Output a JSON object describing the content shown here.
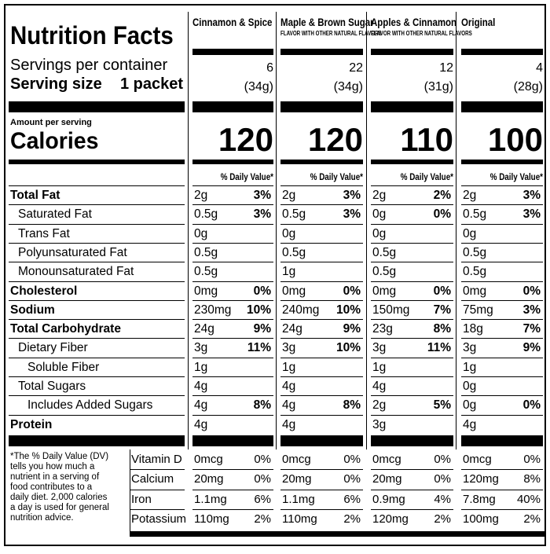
{
  "title": "Nutrition Facts",
  "servings_label": "Servings per container",
  "serving_size_label": "Serving size",
  "serving_size_value": "1 packet",
  "amount_per_serving": "Amount per serving",
  "calories_label": "Calories",
  "dv_header": "% Daily Value*",
  "columns": [
    {
      "name": "Cinnamon & Spice",
      "sub": "",
      "servings": "6",
      "size": "(34g)",
      "calories": "120"
    },
    {
      "name": "Maple & Brown Sugar",
      "sub": "FLAVOR WITH OTHER NATURAL FLAVORS",
      "servings": "22",
      "size": "(34g)",
      "calories": "120"
    },
    {
      "name": "Apples & Cinnamon",
      "sub": "FLAVOR WITH OTHER NATURAL FLAVORS",
      "servings": "12",
      "size": "(31g)",
      "calories": "110"
    },
    {
      "name": "Original",
      "sub": "",
      "servings": "4",
      "size": "(28g)",
      "calories": "100"
    }
  ],
  "nutrients": [
    {
      "label": "Total Fat",
      "bold": true,
      "indent": 0,
      "values": [
        [
          "2g",
          "3%"
        ],
        [
          "2g",
          "3%"
        ],
        [
          "2g",
          "2%"
        ],
        [
          "2g",
          "3%"
        ]
      ]
    },
    {
      "label": "Saturated Fat",
      "bold": false,
      "indent": 1,
      "values": [
        [
          "0.5g",
          "3%"
        ],
        [
          "0.5g",
          "3%"
        ],
        [
          "0g",
          "0%"
        ],
        [
          "0.5g",
          "3%"
        ]
      ]
    },
    {
      "label": "Trans Fat",
      "bold": false,
      "indent": 1,
      "values": [
        [
          "0g",
          ""
        ],
        [
          "0g",
          ""
        ],
        [
          "0g",
          ""
        ],
        [
          "0g",
          ""
        ]
      ]
    },
    {
      "label": "Polyunsaturated Fat",
      "bold": false,
      "indent": 1,
      "values": [
        [
          "0.5g",
          ""
        ],
        [
          "0.5g",
          ""
        ],
        [
          "0.5g",
          ""
        ],
        [
          "0.5g",
          ""
        ]
      ]
    },
    {
      "label": "Monounsaturated Fat",
      "bold": false,
      "indent": 1,
      "values": [
        [
          "0.5g",
          ""
        ],
        [
          "1g",
          ""
        ],
        [
          "0.5g",
          ""
        ],
        [
          "0.5g",
          ""
        ]
      ]
    },
    {
      "label": "Cholesterol",
      "bold": true,
      "indent": 0,
      "values": [
        [
          "0mg",
          "0%"
        ],
        [
          "0mg",
          "0%"
        ],
        [
          "0mg",
          "0%"
        ],
        [
          "0mg",
          "0%"
        ]
      ]
    },
    {
      "label": "Sodium",
      "bold": true,
      "indent": 0,
      "values": [
        [
          "230mg",
          "10%"
        ],
        [
          "240mg",
          "10%"
        ],
        [
          "150mg",
          "7%"
        ],
        [
          "75mg",
          "3%"
        ]
      ]
    },
    {
      "label": "Total Carbohydrate",
      "bold": true,
      "indent": 0,
      "values": [
        [
          "24g",
          "9%"
        ],
        [
          "24g",
          "9%"
        ],
        [
          "23g",
          "8%"
        ],
        [
          "18g",
          "7%"
        ]
      ]
    },
    {
      "label": "Dietary Fiber",
      "bold": false,
      "indent": 1,
      "values": [
        [
          "3g",
          "11%"
        ],
        [
          "3g",
          "10%"
        ],
        [
          "3g",
          "11%"
        ],
        [
          "3g",
          "9%"
        ]
      ]
    },
    {
      "label": "Soluble Fiber",
      "bold": false,
      "indent": 2,
      "values": [
        [
          "1g",
          ""
        ],
        [
          "1g",
          ""
        ],
        [
          "1g",
          ""
        ],
        [
          "1g",
          ""
        ]
      ]
    },
    {
      "label": "Total Sugars",
      "bold": false,
      "indent": 1,
      "values": [
        [
          "4g",
          ""
        ],
        [
          "4g",
          ""
        ],
        [
          "4g",
          ""
        ],
        [
          "0g",
          ""
        ]
      ]
    },
    {
      "label": "Includes Added Sugars",
      "bold": false,
      "indent": 2,
      "values": [
        [
          "4g",
          "8%"
        ],
        [
          "4g",
          "8%"
        ],
        [
          "2g",
          "5%"
        ],
        [
          "0g",
          "0%"
        ]
      ]
    },
    {
      "label": "Protein",
      "bold": true,
      "indent": 0,
      "values": [
        [
          "4g",
          ""
        ],
        [
          "4g",
          ""
        ],
        [
          "3g",
          ""
        ],
        [
          "4g",
          ""
        ]
      ]
    }
  ],
  "footnote": "*The % Daily Value (DV) tells you how much a nutrient in a serving of food contributes to a daily diet. 2,000 calories a day is used for general nutrition advice.",
  "footnote_lines": [
    "*The % Daily Value (DV)",
    "tells you how much a",
    "nutrient in a serving of",
    "food contributes to a",
    "daily diet. 2,000 calories",
    "a day is used for general",
    "nutrition advice."
  ],
  "vitamins": [
    {
      "label": "Vitamin D",
      "values": [
        [
          "0mcg",
          "0%"
        ],
        [
          "0mcg",
          "0%"
        ],
        [
          "0mcg",
          "0%"
        ],
        [
          "0mcg",
          "0%"
        ]
      ]
    },
    {
      "label": "Calcium",
      "values": [
        [
          "20mg",
          "0%"
        ],
        [
          "20mg",
          "0%"
        ],
        [
          "20mg",
          "0%"
        ],
        [
          "120mg",
          "8%"
        ]
      ]
    },
    {
      "label": "Iron",
      "values": [
        [
          "1.1mg",
          "6%"
        ],
        [
          "1.1mg",
          "6%"
        ],
        [
          "0.9mg",
          "4%"
        ],
        [
          "7.8mg",
          "40%"
        ]
      ]
    },
    {
      "label": "Potassium",
      "values": [
        [
          "110mg",
          "2%"
        ],
        [
          "110mg",
          "2%"
        ],
        [
          "120mg",
          "2%"
        ],
        [
          "100mg",
          "2%"
        ]
      ]
    }
  ]
}
